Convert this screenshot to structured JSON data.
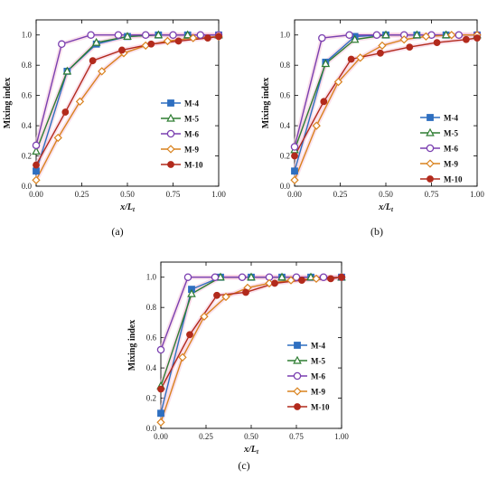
{
  "colors": {
    "M-4": "#2e6fc0",
    "M-5": "#2e7d32",
    "M-6": "#7a3fb0",
    "M-9": "#d9821e",
    "M-10": "#b22a1c",
    "shadow": "#f6c9dc"
  },
  "chart_data": [
    {
      "type": "line",
      "panel_label": "(a)",
      "xlabel": "x/L",
      "xlabel_sub": "t",
      "ylabel": "Mixing index",
      "xlim": [
        0,
        1
      ],
      "ylim": [
        0,
        1.1
      ],
      "xticks": [
        "0.00",
        "0.25",
        "0.50",
        "0.75",
        "1.00"
      ],
      "yticks": [
        "0.0",
        "0.2",
        "0.4",
        "0.6",
        "0.8",
        "1.0"
      ],
      "legend_position": "center-right",
      "series": [
        {
          "name": "M-4",
          "marker": "square",
          "x": [
            0,
            0.17,
            0.33,
            0.5,
            0.67,
            0.83,
            1.0
          ],
          "y": [
            0.1,
            0.76,
            0.94,
            0.99,
            1.0,
            1.0,
            1.0
          ]
        },
        {
          "name": "M-5",
          "marker": "triangle",
          "x": [
            0,
            0.17,
            0.33,
            0.5,
            0.67,
            0.83,
            1.0
          ],
          "y": [
            0.23,
            0.76,
            0.95,
            0.99,
            1.0,
            1.0,
            1.0
          ]
        },
        {
          "name": "M-6",
          "marker": "circle",
          "x": [
            0,
            0.14,
            0.3,
            0.45,
            0.6,
            0.75,
            0.9,
            1.0
          ],
          "y": [
            0.27,
            0.94,
            1.0,
            1.0,
            1.0,
            1.0,
            1.0,
            1.0
          ]
        },
        {
          "name": "M-9",
          "marker": "diamond",
          "x": [
            0,
            0.12,
            0.24,
            0.36,
            0.48,
            0.6,
            0.72,
            0.86,
            1.0
          ],
          "y": [
            0.04,
            0.32,
            0.56,
            0.76,
            0.88,
            0.93,
            0.96,
            0.98,
            0.99
          ]
        },
        {
          "name": "M-10",
          "marker": "filled-circle",
          "x": [
            0,
            0.16,
            0.31,
            0.47,
            0.63,
            0.78,
            0.94,
            1.0
          ],
          "y": [
            0.14,
            0.49,
            0.83,
            0.9,
            0.94,
            0.96,
            0.98,
            0.99
          ]
        }
      ]
    },
    {
      "type": "line",
      "panel_label": "(b)",
      "xlabel": "x/L",
      "xlabel_sub": "t",
      "ylabel": "Mixing index",
      "xlim": [
        0,
        1
      ],
      "ylim": [
        0,
        1.1
      ],
      "xticks": [
        "0.00",
        "0.25",
        "0.50",
        "0.75",
        "1.00"
      ],
      "yticks": [
        "0.0",
        "0.2",
        "0.4",
        "0.6",
        "0.8",
        "1.0"
      ],
      "legend_position": "center-right",
      "series": [
        {
          "name": "M-4",
          "marker": "square",
          "x": [
            0,
            0.17,
            0.33,
            0.5,
            0.67,
            0.83,
            1.0
          ],
          "y": [
            0.1,
            0.82,
            0.99,
            1.0,
            1.0,
            1.0,
            1.0
          ]
        },
        {
          "name": "M-5",
          "marker": "triangle",
          "x": [
            0,
            0.17,
            0.33,
            0.5,
            0.67,
            0.83,
            1.0
          ],
          "y": [
            0.24,
            0.81,
            0.97,
            1.0,
            1.0,
            1.0,
            1.0
          ]
        },
        {
          "name": "M-6",
          "marker": "circle",
          "x": [
            0,
            0.15,
            0.3,
            0.45,
            0.6,
            0.75,
            0.9,
            1.0
          ],
          "y": [
            0.26,
            0.98,
            1.0,
            1.0,
            1.0,
            1.0,
            1.0,
            1.0
          ]
        },
        {
          "name": "M-9",
          "marker": "diamond",
          "x": [
            0,
            0.12,
            0.24,
            0.36,
            0.48,
            0.6,
            0.72,
            0.86,
            1.0
          ],
          "y": [
            0.04,
            0.4,
            0.69,
            0.85,
            0.93,
            0.97,
            0.99,
            1.0,
            1.0
          ]
        },
        {
          "name": "M-10",
          "marker": "filled-circle",
          "x": [
            0,
            0.16,
            0.31,
            0.47,
            0.63,
            0.78,
            0.94,
            1.0
          ],
          "y": [
            0.2,
            0.56,
            0.84,
            0.88,
            0.92,
            0.95,
            0.97,
            0.98
          ]
        }
      ]
    },
    {
      "type": "line",
      "panel_label": "(c)",
      "xlabel": "x/L",
      "xlabel_sub": "t",
      "ylabel": "Mixing index",
      "xlim": [
        0,
        1
      ],
      "ylim": [
        0,
        1.1
      ],
      "xticks": [
        "0.00",
        "0.25",
        "0.50",
        "0.75",
        "1.00"
      ],
      "yticks": [
        "0.0",
        "0.2",
        "0.4",
        "0.6",
        "0.8",
        "1.0"
      ],
      "legend_position": "bottom-right",
      "series": [
        {
          "name": "M-4",
          "marker": "square",
          "x": [
            0,
            0.17,
            0.33,
            0.5,
            0.67,
            0.83,
            1.0
          ],
          "y": [
            0.1,
            0.92,
            1.0,
            1.0,
            1.0,
            1.0,
            1.0
          ]
        },
        {
          "name": "M-5",
          "marker": "triangle",
          "x": [
            0,
            0.17,
            0.33,
            0.5,
            0.67,
            0.83,
            1.0
          ],
          "y": [
            0.28,
            0.89,
            1.0,
            1.0,
            1.0,
            1.0,
            1.0
          ]
        },
        {
          "name": "M-6",
          "marker": "circle",
          "x": [
            0,
            0.15,
            0.3,
            0.45,
            0.6,
            0.75,
            0.9,
            1.0
          ],
          "y": [
            0.52,
            1.0,
            1.0,
            1.0,
            1.0,
            1.0,
            1.0,
            1.0
          ]
        },
        {
          "name": "M-9",
          "marker": "diamond",
          "x": [
            0,
            0.12,
            0.24,
            0.36,
            0.48,
            0.6,
            0.72,
            0.86,
            1.0
          ],
          "y": [
            0.04,
            0.47,
            0.74,
            0.87,
            0.93,
            0.96,
            0.98,
            0.99,
            1.0
          ]
        },
        {
          "name": "M-10",
          "marker": "filled-circle",
          "x": [
            0,
            0.16,
            0.31,
            0.47,
            0.63,
            0.78,
            0.94,
            1.0
          ],
          "y": [
            0.26,
            0.62,
            0.88,
            0.9,
            0.96,
            0.98,
            0.99,
            1.0
          ]
        }
      ]
    }
  ]
}
